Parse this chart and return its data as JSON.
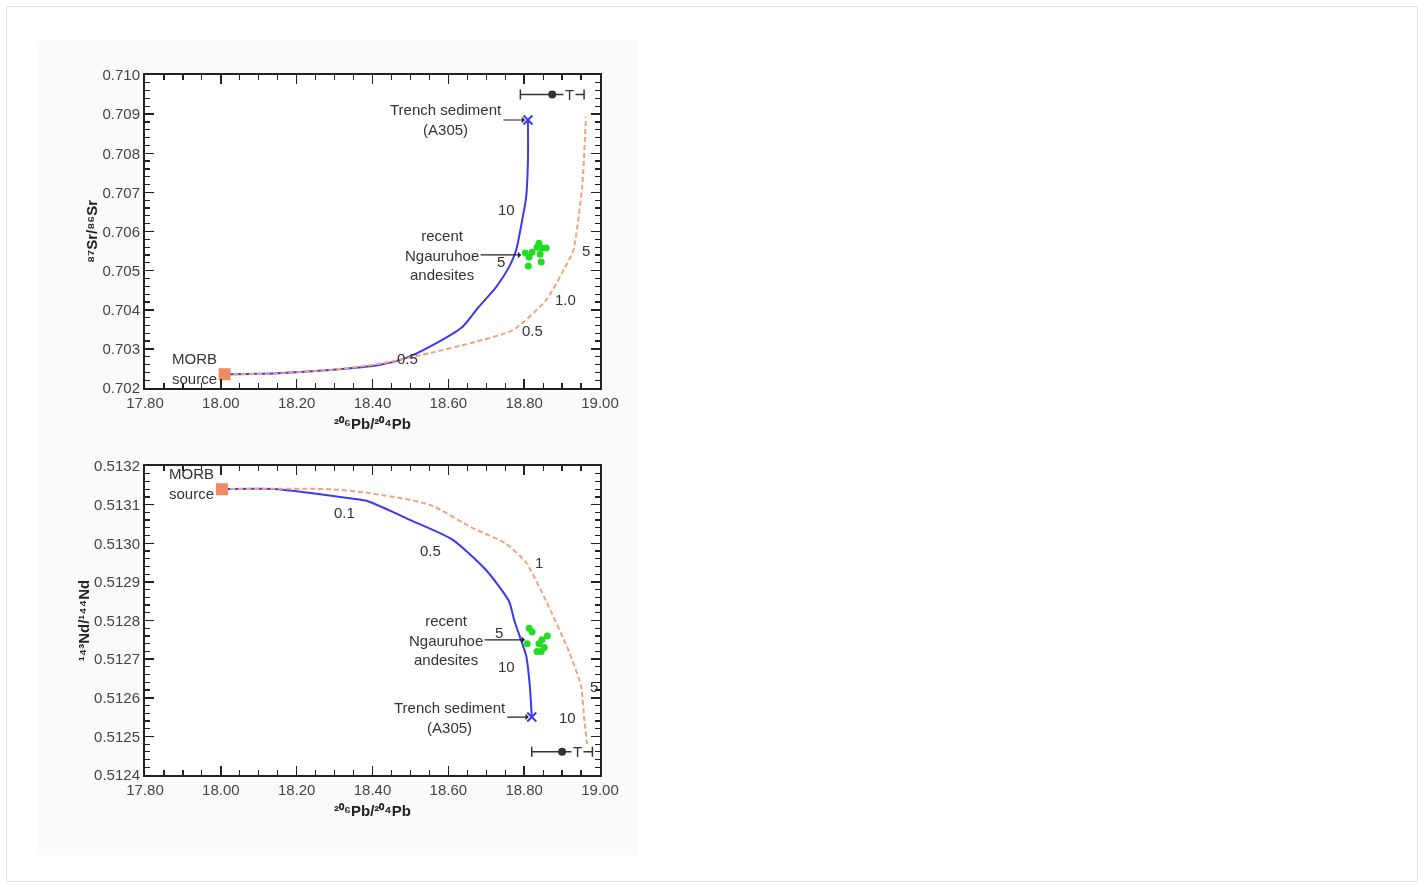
{
  "chart_data": [
    {
      "type": "line",
      "xlabel": "²⁰⁶Pb/²⁰⁴Pb",
      "ylabel": "⁸⁷Sr/⁸⁶Sr",
      "xlim": [
        17.8,
        19.0
      ],
      "ylim": [
        0.702,
        0.71
      ],
      "xticks": [
        {
          "value": 17.8,
          "label": "17.80"
        },
        {
          "value": 18.0,
          "label": "18.00"
        },
        {
          "value": 18.2,
          "label": "18.20"
        },
        {
          "value": 18.4,
          "label": "18.40"
        },
        {
          "value": 18.6,
          "label": "18.60"
        },
        {
          "value": 18.8,
          "label": "18.80"
        },
        {
          "value": 19.0,
          "label": "19.00"
        }
      ],
      "yticks": [
        0.702,
        0.703,
        0.704,
        0.705,
        0.706,
        0.707,
        0.708,
        0.709,
        {
          "value": 0.71,
          "label": "0.710"
        }
      ],
      "grid": false,
      "series": [
        {
          "color": "#3a3af5",
          "line_style": "solid",
          "x": [
            18.01,
            18.15,
            18.287,
            18.418,
            18.489,
            18.55,
            18.637,
            18.68,
            18.726,
            18.76,
            18.779,
            18.795,
            18.805,
            18.81,
            18.81
          ],
          "values": [
            0.70235,
            0.70238,
            0.70246,
            0.70259,
            0.70277,
            0.70305,
            0.70356,
            0.70407,
            0.70458,
            0.70509,
            0.70553,
            0.7063,
            0.70686,
            0.70783,
            0.70885
          ]
        },
        {
          "color": "#f7a07c",
          "line_style": "dashed",
          "x": [
            18.01,
            18.15,
            18.287,
            18.42,
            18.55,
            18.66,
            18.77,
            18.858,
            18.918,
            18.93,
            18.953,
            18.963
          ],
          "values": [
            0.70235,
            0.70237,
            0.70246,
            0.70262,
            0.70289,
            0.70315,
            0.70348,
            0.70425,
            0.70527,
            0.70552,
            0.70714,
            0.70893
          ]
        },
        {
          "type": "scatter",
          "color": "#22dd22",
          "marker": "circle",
          "x": [
            18.803,
            18.813,
            18.811,
            18.821,
            18.834,
            18.839,
            18.847,
            18.842,
            18.845,
            18.858
          ],
          "values": [
            0.70545,
            0.70535,
            0.70512,
            0.70547,
            0.7056,
            0.7057,
            0.70558,
            0.70542,
            0.70522,
            0.70558
          ]
        },
        {
          "type": "scatter",
          "color": "#f08a60",
          "marker": "square",
          "x": [
            18.01
          ],
          "values": [
            0.70235
          ]
        },
        {
          "type": "scatter",
          "color": "#3a3af5",
          "marker": "cross",
          "x": [
            18.81
          ],
          "values": [
            0.70885
          ]
        },
        {
          "type": "scatter",
          "color": "#333333",
          "marker": "circle",
          "x": [
            18.874
          ],
          "values": [
            0.7095
          ],
          "xerrors": [
            [
              18.79,
              18.958
            ]
          ]
        }
      ],
      "annotations": [
        {
          "text": "T",
          "x": 18.92,
          "y": 0.7095
        },
        {
          "text": "MORB\nsource",
          "x": 18.01,
          "y": 0.70235
        },
        {
          "text": "Trench sediment\n(A305)",
          "x": 18.81,
          "y": 0.70885
        },
        {
          "text": "recent\nNgauruhoe\nandesites",
          "x": 18.8,
          "y": 0.7054
        },
        {
          "text": "0.5",
          "x": 18.55,
          "y": 0.70305
        },
        {
          "text": "5",
          "x": 18.779,
          "y": 0.70553
        },
        {
          "text": "10",
          "x": 18.805,
          "y": 0.70686
        },
        {
          "text": "0.5",
          "x": 18.77,
          "y": 0.70348
        },
        {
          "text": "1.0",
          "x": 18.858,
          "y": 0.70425
        },
        {
          "text": "5",
          "x": 18.93,
          "y": 0.70552
        }
      ]
    },
    {
      "type": "line",
      "xlabel": "²⁰⁶Pb/²⁰⁴Pb",
      "ylabel": "¹⁴³Nd/¹⁴⁴Nd",
      "xlim": [
        17.8,
        19.0
      ],
      "ylim": [
        0.5124,
        0.5132
      ],
      "xticks": [
        {
          "value": 17.8,
          "label": "17.80"
        },
        {
          "value": 18.0,
          "label": "18.00"
        },
        {
          "value": 18.2,
          "label": "18.20"
        },
        {
          "value": 18.4,
          "label": "18.40"
        },
        {
          "value": 18.6,
          "label": "18.60"
        },
        {
          "value": 18.8,
          "label": "18.80"
        },
        {
          "value": 19.0,
          "label": "19.00"
        }
      ],
      "yticks": [
        0.5124,
        0.5125,
        0.5126,
        0.5127,
        0.5128,
        0.5129,
        {
          "value": 0.513,
          "label": "0.5130"
        },
        0.5131,
        0.5132
      ],
      "grid": false,
      "series": [
        {
          "color": "#3a3af5",
          "line_style": "solid",
          "x": [
            18.003,
            18.15,
            18.313,
            18.384,
            18.5,
            18.61,
            18.7,
            18.76,
            18.774,
            18.795,
            18.805,
            18.815,
            18.82
          ],
          "values": [
            0.51314,
            0.51314,
            0.51312,
            0.51311,
            0.51306,
            0.51301,
            0.51293,
            0.51285,
            0.5128,
            0.51274,
            0.51271,
            0.51263,
            0.51255
          ]
        },
        {
          "color": "#f7a07c",
          "line_style": "dashed",
          "x": [
            18.003,
            18.287,
            18.392,
            18.55,
            18.663,
            18.75,
            18.805,
            18.858,
            18.918,
            18.95,
            18.958,
            18.966
          ],
          "values": [
            0.51314,
            0.51314,
            0.51313,
            0.5131,
            0.51304,
            0.513,
            0.51295,
            0.51285,
            0.51272,
            0.51263,
            0.51255,
            0.51248
          ]
        },
        {
          "type": "scatter",
          "color": "#22dd22",
          "marker": "circle",
          "x": [
            18.813,
            18.821,
            18.808,
            18.839,
            18.847,
            18.861,
            18.853,
            18.845,
            18.834
          ],
          "values": [
            0.51278,
            0.51277,
            0.51274,
            0.51274,
            0.51275,
            0.51276,
            0.51273,
            0.51272,
            0.51272
          ]
        },
        {
          "type": "scatter",
          "color": "#f08a60",
          "marker": "square",
          "x": [
            18.003
          ],
          "values": [
            0.51314
          ]
        },
        {
          "type": "scatter",
          "color": "#3a3af5",
          "marker": "cross",
          "x": [
            18.82
          ],
          "values": [
            0.51255
          ]
        },
        {
          "type": "scatter",
          "color": "#333333",
          "marker": "circle",
          "x": [
            18.9
          ],
          "values": [
            0.51246
          ],
          "xerrors": [
            [
              18.82,
              18.98
            ]
          ]
        }
      ],
      "annotations": [
        {
          "text": "T",
          "x": 18.94,
          "y": 0.51246
        },
        {
          "text": "MORB\nsource",
          "x": 18.003,
          "y": 0.51314
        },
        {
          "text": "Trench sediment\n(A305)",
          "x": 18.82,
          "y": 0.51255
        },
        {
          "text": "recent\nNgauruhoe\nandesites",
          "x": 18.81,
          "y": 0.51275
        },
        {
          "text": "0.1",
          "x": 18.384,
          "y": 0.51311
        },
        {
          "text": "0.5",
          "x": 18.61,
          "y": 0.51301
        },
        {
          "text": "5",
          "x": 18.774,
          "y": 0.5128
        },
        {
          "text": "10",
          "x": 18.805,
          "y": 0.51271
        },
        {
          "text": "1",
          "x": 18.805,
          "y": 0.51295
        },
        {
          "text": "5",
          "x": 18.95,
          "y": 0.51263
        },
        {
          "text": "10",
          "x": 18.958,
          "y": 0.51255
        }
      ]
    }
  ]
}
